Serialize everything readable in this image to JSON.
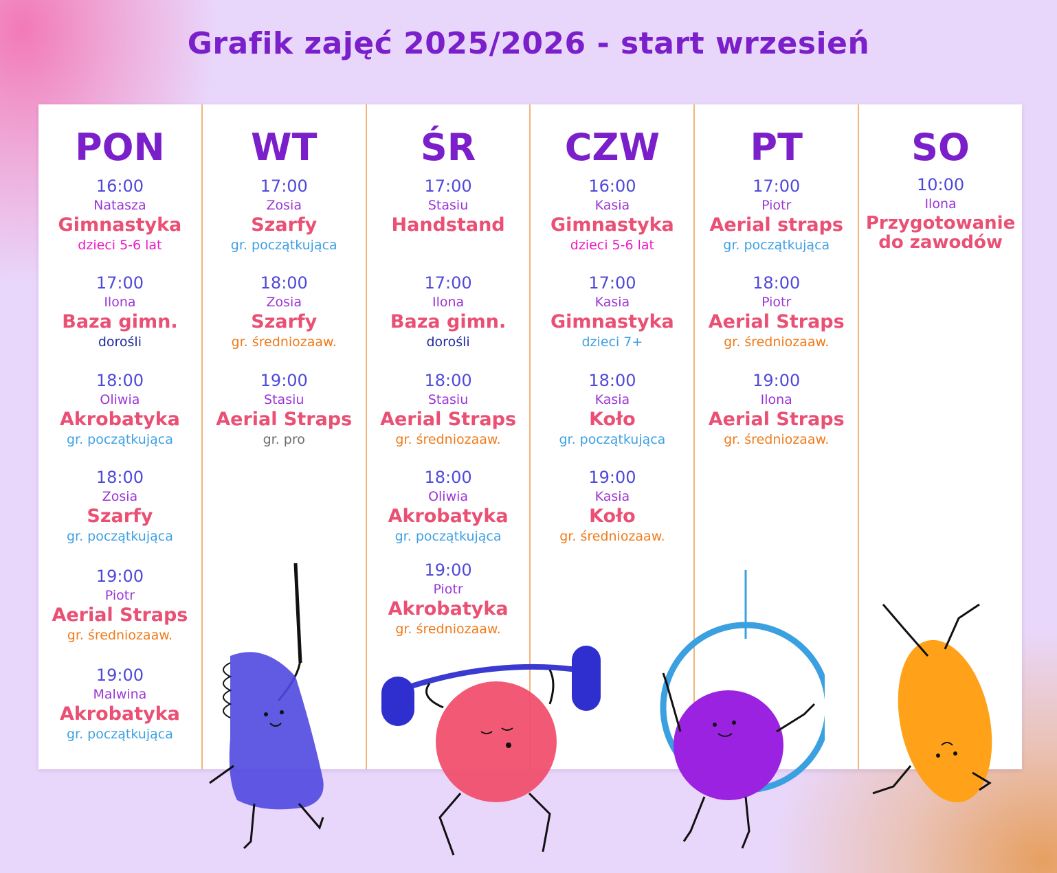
{
  "title": "Grafik zajęć 2025/2026 - start wrzesień",
  "colors": {
    "background": "#e9d7fb",
    "title": "#7a1fc9",
    "time": "#4f49d8",
    "coach": "#9a35d6",
    "class": "#ea4f74",
    "divider": "#f1b47a"
  },
  "days": [
    {
      "name": "PON",
      "slots": [
        {
          "time": "16:00",
          "coach": "Natasza",
          "class": "Gimnastyka",
          "group": "dzieci 5-6 lat"
        },
        {
          "time": "17:00",
          "coach": "Ilona",
          "class": "Baza gimn.",
          "group": "dorośli"
        },
        {
          "time": "18:00",
          "coach": "Oliwia",
          "class": "Akrobatyka",
          "group": "gr. początkująca"
        },
        {
          "time": "18:00",
          "coach": "Zosia",
          "class": "Szarfy",
          "group": "gr. początkująca"
        },
        {
          "time": "19:00",
          "coach": "Piotr",
          "class": "Aerial Straps",
          "group": "gr. średniozaaw."
        },
        {
          "time": "19:00",
          "coach": "Malwina",
          "class": "Akrobatyka",
          "group": "gr. początkująca"
        }
      ]
    },
    {
      "name": "WT",
      "slots": [
        {
          "time": "17:00",
          "coach": "Zosia",
          "class": "Szarfy",
          "group": "gr. początkująca"
        },
        {
          "time": "18:00",
          "coach": "Zosia",
          "class": "Szarfy",
          "group": "gr. średniozaaw."
        },
        {
          "time": "19:00",
          "coach": "Stasiu",
          "class": "Aerial Straps",
          "group": "gr. pro"
        }
      ]
    },
    {
      "name": "ŚR",
      "slots": [
        {
          "time": "17:00",
          "coach": "Stasiu",
          "class": "Handstand",
          "group": ""
        },
        {
          "time": "17:00",
          "coach": "Ilona",
          "class": "Baza gimn.",
          "group": "dorośli"
        },
        {
          "time": "18:00",
          "coach": "Stasiu",
          "class": "Aerial Straps",
          "group": "gr. średniozaaw."
        },
        {
          "time": "18:00",
          "coach": "Oliwia",
          "class": "Akrobatyka",
          "group": "gr. początkująca"
        },
        {
          "time": "19:00",
          "coach": "Piotr",
          "class": "Akrobatyka",
          "group": "gr. średniozaaw."
        }
      ]
    },
    {
      "name": "CZW",
      "slots": [
        {
          "time": "16:00",
          "coach": "Kasia",
          "class": "Gimnastyka",
          "group": "dzieci 5-6 lat"
        },
        {
          "time": "17:00",
          "coach": "Kasia",
          "class": "Gimnastyka",
          "group": "dzieci 7+"
        },
        {
          "time": "18:00",
          "coach": "Kasia",
          "class": "Koło",
          "group": "gr. początkująca"
        },
        {
          "time": "19:00",
          "coach": "Kasia",
          "class": "Koło",
          "group": "gr. średniozaaw."
        }
      ]
    },
    {
      "name": "PT",
      "slots": [
        {
          "time": "17:00",
          "coach": "Piotr",
          "class": "Aerial straps",
          "group": "gr. początkująca"
        },
        {
          "time": "18:00",
          "coach": "Piotr",
          "class": "Aerial Straps",
          "group": "gr. średniozaaw."
        },
        {
          "time": "19:00",
          "coach": "Ilona",
          "class": "Aerial Straps",
          "group": "gr. średniozaaw."
        }
      ]
    },
    {
      "name": "SO",
      "slots": [
        {
          "time": "10:00",
          "coach": "Ilona",
          "class": "Przygotowanie do zawodów",
          "group": ""
        }
      ]
    }
  ],
  "illustrations": [
    {
      "icon": "blue-cone-ribbon-character-icon",
      "color": "#5048e0"
    },
    {
      "icon": "pink-ball-barbell-character-icon",
      "color": "#f0506e"
    },
    {
      "icon": "purple-ball-aerial-hoop-character-icon",
      "color": "#9a22e0"
    },
    {
      "icon": "orange-handstand-character-icon",
      "color": "#ffa21a"
    }
  ]
}
